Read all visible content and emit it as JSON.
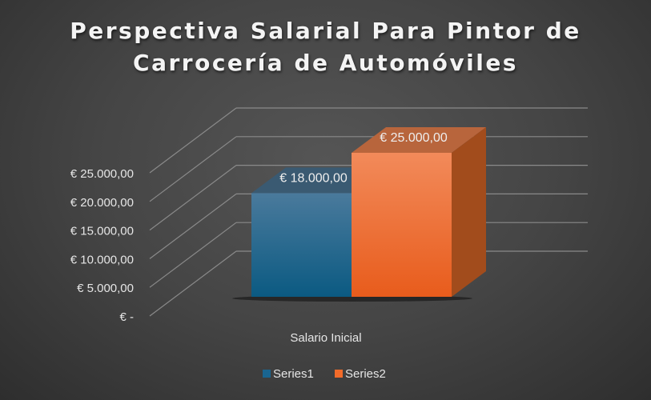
{
  "chart_data": {
    "type": "bar",
    "variant": "3d-clustered-column",
    "title_lines": [
      "Perspectiva Salarial Para Pintor de",
      "Carrocería de Automóviles"
    ],
    "categories": [
      "Salario Inicial"
    ],
    "series": [
      {
        "name": "Series1",
        "values": [
          18000
        ],
        "color": "#1a6590",
        "data_label": "€ 18.000,00"
      },
      {
        "name": "Series2",
        "values": [
          25000
        ],
        "color": "#f26b2a",
        "data_label": "€ 25.000,00"
      }
    ],
    "ylim": [
      0,
      25000
    ],
    "y_ticks": [
      0,
      5000,
      10000,
      15000,
      20000,
      25000
    ],
    "y_tick_labels": [
      "€ -",
      "€ 5.000,00",
      "€ 10.000,00",
      "€ 15.000,00",
      "€ 20.000,00",
      "€ 25.000,00"
    ],
    "grid": true,
    "legend": "bottom",
    "background": "#444444"
  }
}
